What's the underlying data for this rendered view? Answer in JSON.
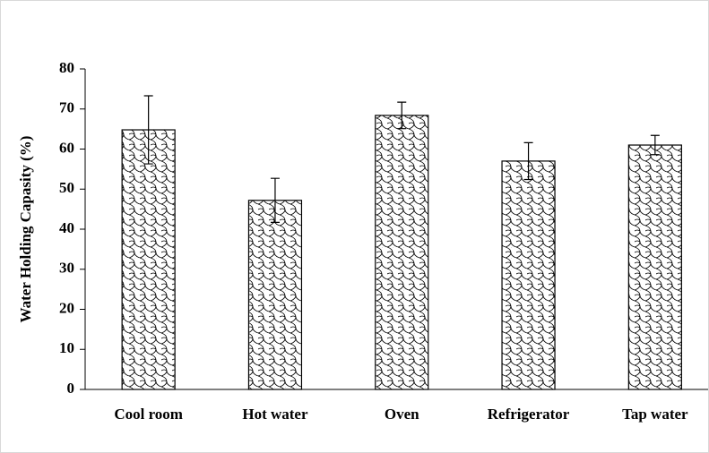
{
  "chart_data": {
    "type": "bar",
    "y_label": "Water Holding Capasity (%)",
    "categories": [
      "Cool room",
      "Hot water",
      "Oven",
      "Refrigerator",
      "Tap water"
    ],
    "values": [
      64.8,
      47.2,
      68.4,
      57.0,
      61.0
    ],
    "errors": [
      8.5,
      5.5,
      3.3,
      4.6,
      2.4
    ],
    "ylim": [
      0,
      80
    ],
    "yticks": [
      0,
      10,
      20,
      30,
      40,
      50,
      60,
      70,
      80
    ]
  }
}
